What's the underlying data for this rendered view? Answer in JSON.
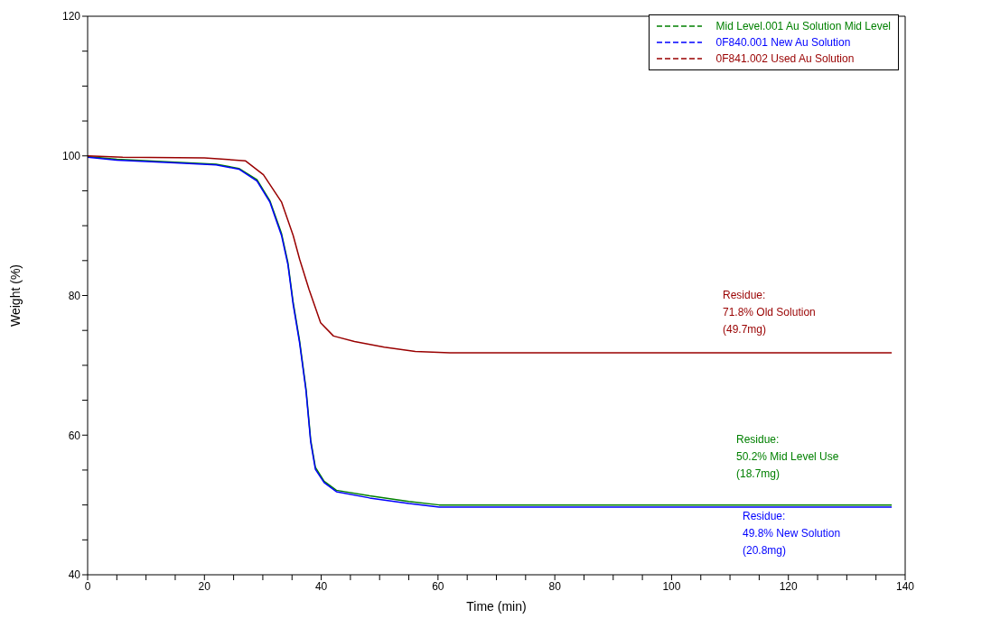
{
  "chart_data": {
    "type": "line",
    "xlabel": "Time (min)",
    "ylabel": "Weight (%)",
    "xlim": [
      0,
      140
    ],
    "ylim": [
      40,
      120
    ],
    "xticks": [
      0,
      {
        "value": 5,
        "label": null
      },
      {
        "value": 10,
        "label": null
      },
      {
        "value": 15,
        "label": null
      },
      20,
      {
        "value": 25,
        "label": null
      },
      {
        "value": 30,
        "label": null
      },
      {
        "value": 35,
        "label": null
      },
      40,
      {
        "value": 45,
        "label": null
      },
      {
        "value": 50,
        "label": null
      },
      {
        "value": 55,
        "label": null
      },
      60,
      {
        "value": 65,
        "label": null
      },
      {
        "value": 70,
        "label": null
      },
      {
        "value": 75,
        "label": null
      },
      80,
      {
        "value": 85,
        "label": null
      },
      {
        "value": 90,
        "label": null
      },
      {
        "value": 95,
        "label": null
      },
      100,
      {
        "value": 105,
        "label": null
      },
      {
        "value": 110,
        "label": null
      },
      {
        "value": 115,
        "label": null
      },
      120,
      {
        "value": 125,
        "label": null
      },
      {
        "value": 130,
        "label": null
      },
      {
        "value": 135,
        "label": null
      },
      140
    ],
    "yticks": [
      40,
      {
        "value": 45,
        "label": null
      },
      {
        "value": 50,
        "label": null
      },
      {
        "value": 55,
        "label": null
      },
      60,
      {
        "value": 65,
        "label": null
      },
      {
        "value": 70,
        "label": null
      },
      {
        "value": 75,
        "label": null
      },
      80,
      {
        "value": 85,
        "label": null
      },
      {
        "value": 90,
        "label": null
      },
      {
        "value": 95,
        "label": null
      },
      100,
      {
        "value": 105,
        "label": null
      },
      {
        "value": 110,
        "label": null
      },
      {
        "value": 115,
        "label": null
      },
      120
    ],
    "grid": false,
    "legend": "top right",
    "line_style": "solid",
    "series": [
      {
        "name": "Mid Level.001  Au Solution Mid Level",
        "color": "#008000",
        "x": [
          0,
          5,
          15,
          22,
          25.9,
          29,
          31.2,
          33.2,
          34.3,
          35.2,
          36.3,
          37.4,
          38.2,
          39,
          40.5,
          42.6,
          48.3,
          55,
          60.2,
          137.7
        ],
        "values": [
          99.9,
          99.5,
          99.1,
          98.8,
          98.2,
          96.6,
          93.6,
          88.9,
          84.7,
          79,
          73.5,
          66.6,
          59.3,
          55.4,
          53.4,
          52.1,
          51.3,
          50.5,
          50.0,
          50.0
        ]
      },
      {
        "name": "0F840.001  New Au Solution",
        "color": "#0000ff",
        "x": [
          0,
          5,
          15,
          22,
          25.9,
          29,
          31.2,
          33.2,
          34.3,
          35.2,
          36.3,
          37.4,
          38.2,
          39,
          40.5,
          42.6,
          48.3,
          55,
          60.2,
          137.7
        ],
        "values": [
          99.8,
          99.4,
          99.0,
          98.7,
          98.1,
          96.4,
          93.4,
          88.6,
          84.4,
          78.7,
          73.2,
          66.3,
          59,
          55.1,
          53.2,
          51.9,
          51,
          50.2,
          49.7,
          49.7
        ]
      },
      {
        "name": "0F841.002  Used Au Solution",
        "color": "#990000",
        "x": [
          0,
          6,
          20,
          27,
          30.1,
          33.2,
          35.2,
          36.3,
          37.9,
          39.9,
          42.1,
          45.7,
          50.8,
          56.1,
          62,
          137.7
        ],
        "values": [
          100,
          99.8,
          99.7,
          99.3,
          97.3,
          93.4,
          88.6,
          85.2,
          80.9,
          76.1,
          74.2,
          73.4,
          72.6,
          72.0,
          71.8,
          71.8
        ]
      }
    ],
    "annotations": [
      "Residue:\n71.8% Old Solution\n(49.7mg)",
      "Residue:\n50.2% Mid Level Use\n(18.7mg)",
      "Residue:\n49.8% New Solution\n(20.8mg)"
    ]
  }
}
